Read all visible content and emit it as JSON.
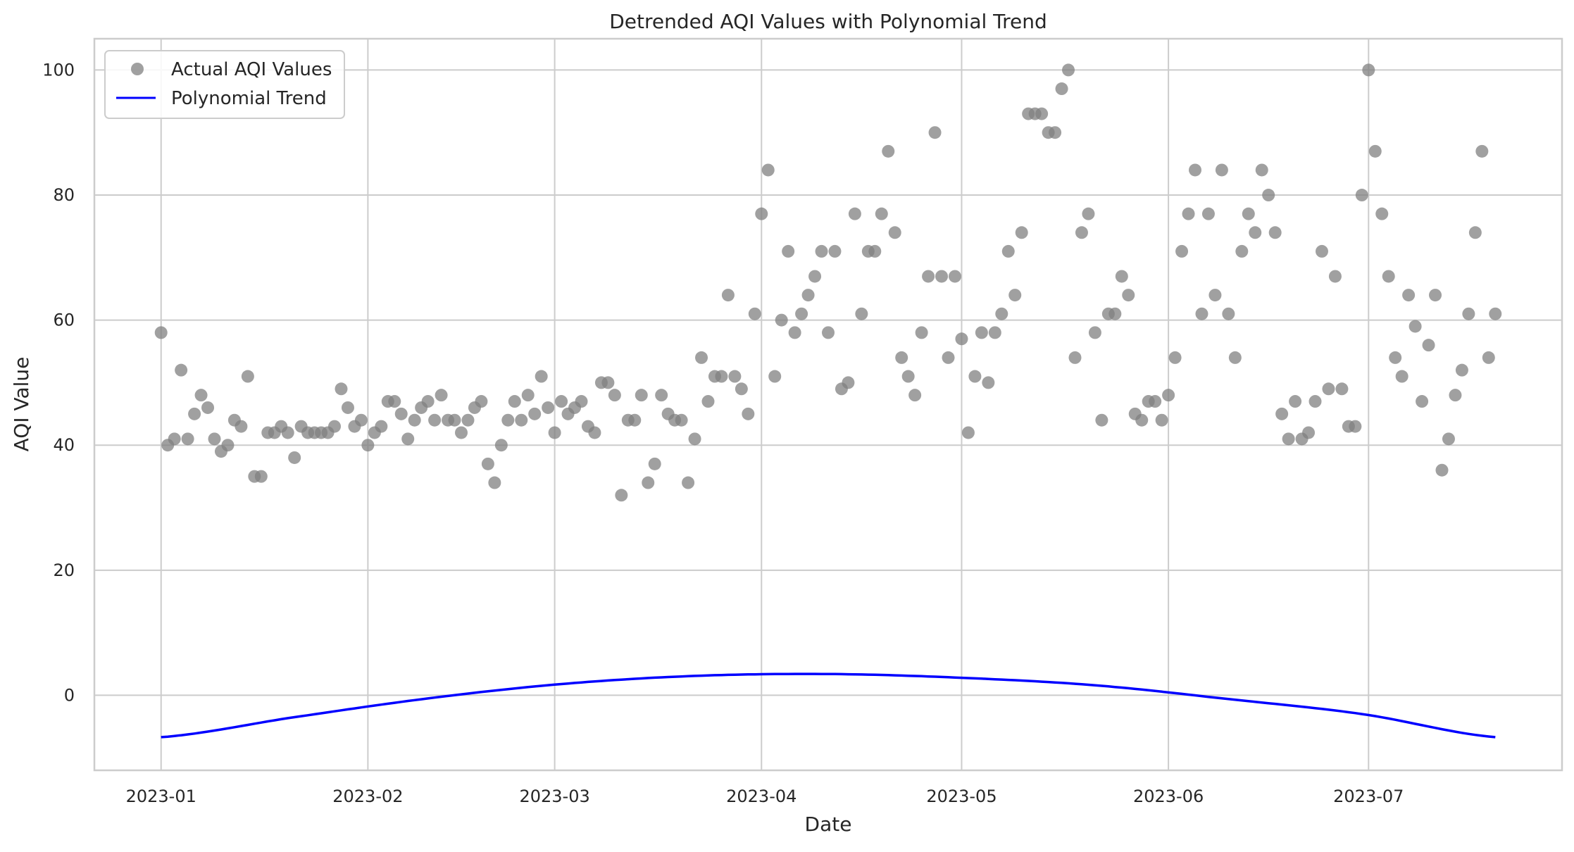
{
  "chart_data": {
    "type": "scatter",
    "title": "Detrended AQI Values with Polynomial Trend",
    "xlabel": "Date",
    "ylabel": "AQI Value",
    "x_tick_labels": [
      "2023-01",
      "2023-02",
      "2023-03",
      "2023-04",
      "2023-05",
      "2023-06",
      "2023-07"
    ],
    "x_tick_dates": [
      "2023-01-01",
      "2023-02-01",
      "2023-03-01",
      "2023-04-01",
      "2023-05-01",
      "2023-06-01",
      "2023-07-01"
    ],
    "xlim": [
      "2022-12-22",
      "2023-07-30"
    ],
    "y_ticks": [
      0,
      20,
      40,
      60,
      80,
      100
    ],
    "ylim": [
      -12,
      105
    ],
    "grid": true,
    "legend_position": "top-left",
    "legend": [
      "Actual AQI Values",
      "Polynomial Trend"
    ],
    "series": [
      {
        "name": "Actual AQI Values",
        "kind": "scatter",
        "color": "#808080",
        "x": [
          "2023-01-01",
          "2023-01-02",
          "2023-01-03",
          "2023-01-04",
          "2023-01-05",
          "2023-01-06",
          "2023-01-07",
          "2023-01-08",
          "2023-01-09",
          "2023-01-10",
          "2023-01-11",
          "2023-01-12",
          "2023-01-13",
          "2023-01-14",
          "2023-01-15",
          "2023-01-16",
          "2023-01-17",
          "2023-01-18",
          "2023-01-19",
          "2023-01-20",
          "2023-01-21",
          "2023-01-22",
          "2023-01-23",
          "2023-01-24",
          "2023-01-25",
          "2023-01-26",
          "2023-01-27",
          "2023-01-28",
          "2023-01-29",
          "2023-01-30",
          "2023-01-31",
          "2023-02-01",
          "2023-02-02",
          "2023-02-03",
          "2023-02-04",
          "2023-02-05",
          "2023-02-06",
          "2023-02-07",
          "2023-02-08",
          "2023-02-09",
          "2023-02-10",
          "2023-02-11",
          "2023-02-12",
          "2023-02-13",
          "2023-02-14",
          "2023-02-15",
          "2023-02-16",
          "2023-02-17",
          "2023-02-18",
          "2023-02-19",
          "2023-02-20",
          "2023-02-21",
          "2023-02-22",
          "2023-02-23",
          "2023-02-24",
          "2023-02-25",
          "2023-02-26",
          "2023-02-27",
          "2023-02-28",
          "2023-03-01",
          "2023-03-02",
          "2023-03-03",
          "2023-03-04",
          "2023-03-05",
          "2023-03-06",
          "2023-03-07",
          "2023-03-08",
          "2023-03-09",
          "2023-03-10",
          "2023-03-11",
          "2023-03-12",
          "2023-03-13",
          "2023-03-14",
          "2023-03-15",
          "2023-03-16",
          "2023-03-17",
          "2023-03-18",
          "2023-03-19",
          "2023-03-20",
          "2023-03-21",
          "2023-03-22",
          "2023-03-23",
          "2023-03-24",
          "2023-03-25",
          "2023-03-26",
          "2023-03-27",
          "2023-03-28",
          "2023-03-29",
          "2023-03-30",
          "2023-03-31",
          "2023-04-01",
          "2023-04-02",
          "2023-04-03",
          "2023-04-04",
          "2023-04-05",
          "2023-04-06",
          "2023-04-07",
          "2023-04-08",
          "2023-04-09",
          "2023-04-10",
          "2023-04-11",
          "2023-04-12",
          "2023-04-13",
          "2023-04-14",
          "2023-04-15",
          "2023-04-16",
          "2023-04-17",
          "2023-04-18",
          "2023-04-19",
          "2023-04-20",
          "2023-04-21",
          "2023-04-22",
          "2023-04-23",
          "2023-04-24",
          "2023-04-25",
          "2023-04-26",
          "2023-04-27",
          "2023-04-28",
          "2023-04-29",
          "2023-04-30",
          "2023-05-01",
          "2023-05-02",
          "2023-05-03",
          "2023-05-04",
          "2023-05-05",
          "2023-05-06",
          "2023-05-07",
          "2023-05-08",
          "2023-05-09",
          "2023-05-10",
          "2023-05-11",
          "2023-05-12",
          "2023-05-13",
          "2023-05-14",
          "2023-05-15",
          "2023-05-16",
          "2023-05-17",
          "2023-05-18",
          "2023-05-19",
          "2023-05-20",
          "2023-05-21",
          "2023-05-22",
          "2023-05-23",
          "2023-05-24",
          "2023-05-25",
          "2023-05-26",
          "2023-05-27",
          "2023-05-28",
          "2023-05-29",
          "2023-05-30",
          "2023-05-31",
          "2023-06-01",
          "2023-06-02",
          "2023-06-03",
          "2023-06-04",
          "2023-06-05",
          "2023-06-06",
          "2023-06-07",
          "2023-06-08",
          "2023-06-09",
          "2023-06-10",
          "2023-06-11",
          "2023-06-12",
          "2023-06-13",
          "2023-06-14",
          "2023-06-15",
          "2023-06-16",
          "2023-06-17",
          "2023-06-18",
          "2023-06-19",
          "2023-06-20",
          "2023-06-21",
          "2023-06-22",
          "2023-06-23",
          "2023-06-24",
          "2023-06-25",
          "2023-06-26",
          "2023-06-27",
          "2023-06-28",
          "2023-06-29",
          "2023-06-30",
          "2023-07-01",
          "2023-07-02",
          "2023-07-03",
          "2023-07-04",
          "2023-07-05",
          "2023-07-06",
          "2023-07-07",
          "2023-07-08",
          "2023-07-09",
          "2023-07-10",
          "2023-07-11",
          "2023-07-12",
          "2023-07-13",
          "2023-07-14",
          "2023-07-15",
          "2023-07-16",
          "2023-07-17",
          "2023-07-18",
          "2023-07-19",
          "2023-07-20"
        ],
        "y": [
          58,
          40,
          41,
          52,
          41,
          45,
          48,
          46,
          41,
          39,
          40,
          44,
          43,
          51,
          35,
          35,
          42,
          42,
          43,
          42,
          38,
          43,
          42,
          42,
          42,
          42,
          43,
          49,
          46,
          43,
          44,
          40,
          42,
          43,
          47,
          47,
          45,
          41,
          44,
          46,
          47,
          44,
          48,
          44,
          44,
          42,
          44,
          46,
          47,
          37,
          34,
          40,
          44,
          47,
          44,
          48,
          45,
          51,
          46,
          42,
          47,
          45,
          46,
          47,
          43,
          42,
          50,
          50,
          48,
          32,
          44,
          44,
          48,
          34,
          37,
          48,
          45,
          44,
          44,
          34,
          41,
          54,
          47,
          51,
          51,
          64,
          51,
          49,
          45,
          61,
          77,
          84,
          51,
          60,
          71,
          58,
          61,
          64,
          67,
          71,
          58,
          71,
          49,
          50,
          77,
          61,
          71,
          71,
          77,
          87,
          74,
          54,
          51,
          48,
          58,
          67,
          90,
          67,
          54,
          67,
          57,
          42,
          51,
          58,
          50,
          58,
          61,
          71,
          64,
          74,
          93,
          93,
          93,
          90,
          90,
          97,
          100,
          54,
          74,
          77,
          58,
          44,
          61,
          61,
          67,
          64,
          45,
          44,
          47,
          47,
          44,
          48,
          54,
          71,
          77,
          84,
          61,
          77,
          64,
          84,
          61,
          54,
          71,
          77,
          74,
          84,
          80,
          74,
          45,
          41,
          47,
          41,
          42,
          47,
          71,
          49,
          67,
          49,
          43,
          43,
          80,
          100,
          87,
          77,
          67,
          54,
          51,
          64,
          59,
          47,
          56,
          64,
          36,
          41,
          48,
          52,
          61,
          74,
          87,
          54,
          61
        ]
      },
      {
        "name": "Polynomial Trend",
        "kind": "line",
        "color": "#0000ff",
        "x": [
          "2023-01-01",
          "2023-01-21",
          "2023-02-10",
          "2023-03-02",
          "2023-03-22",
          "2023-04-11",
          "2023-05-01",
          "2023-05-21",
          "2023-06-10",
          "2023-06-30",
          "2023-07-20"
        ],
        "y": [
          -6.7,
          -3.5,
          -0.5,
          1.8,
          3.1,
          3.4,
          2.8,
          1.6,
          -0.6,
          -3.0,
          -6.7
        ]
      }
    ]
  }
}
